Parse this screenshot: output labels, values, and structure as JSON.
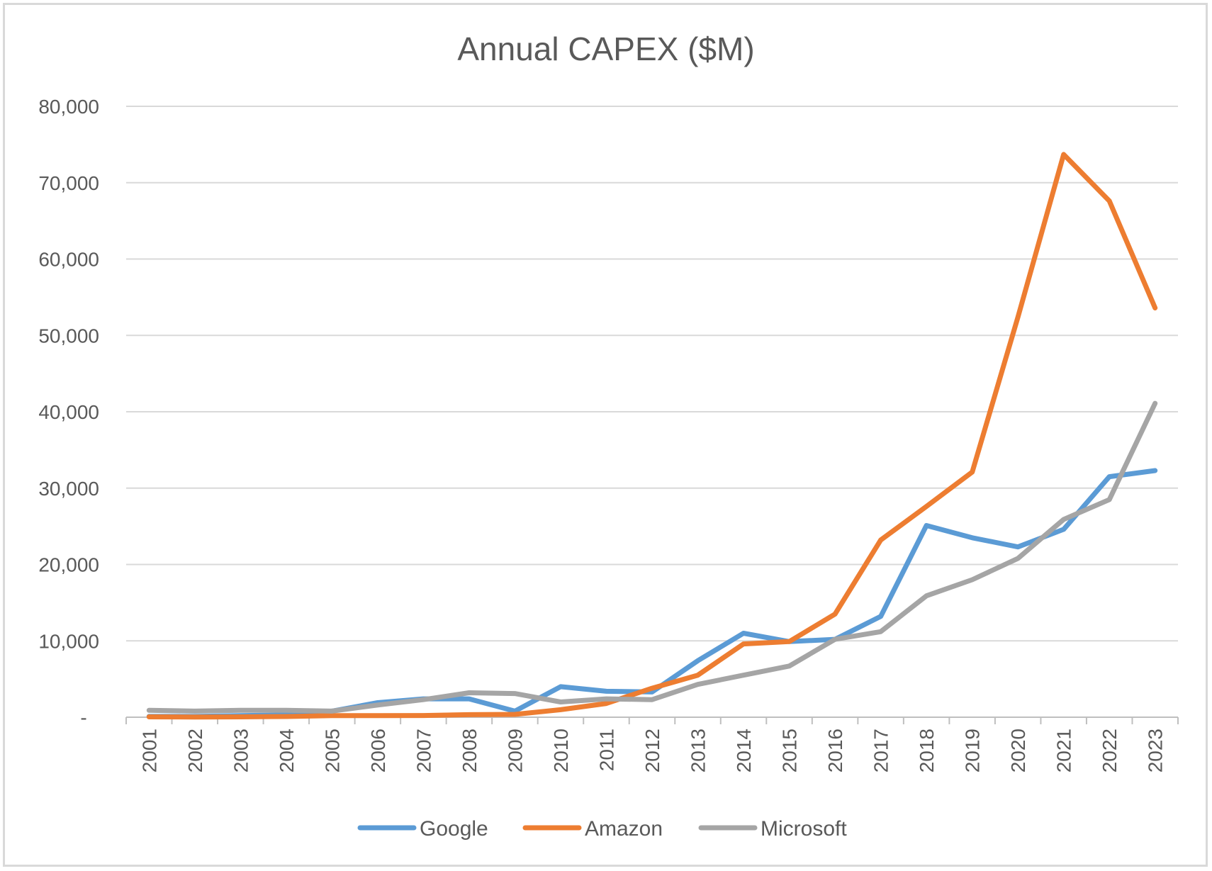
{
  "chart_data": {
    "type": "line",
    "title": "Annual CAPEX ($M)",
    "xlabel": "",
    "ylabel": "",
    "ylim": [
      0,
      80000
    ],
    "y_ticks": [
      0,
      10000,
      20000,
      30000,
      40000,
      50000,
      60000,
      70000,
      80000
    ],
    "y_tick_labels": [
      "-",
      "10,000",
      "20,000",
      "30,000",
      "40,000",
      "50,000",
      "60,000",
      "70,000",
      "80,000"
    ],
    "grid": true,
    "legend_position": "bottom",
    "categories": [
      "2001",
      "2002",
      "2003",
      "2004",
      "2005",
      "2006",
      "2007",
      "2008",
      "2009",
      "2010",
      "2011",
      "2012",
      "2013",
      "2014",
      "2015",
      "2016",
      "2017",
      "2018",
      "2019",
      "2020",
      "2021",
      "2022",
      "2023"
    ],
    "series": [
      {
        "name": "Google",
        "color": "#5b9bd5",
        "values": [
          100,
          100,
          200,
          300,
          800,
          1900,
          2400,
          2400,
          800,
          4000,
          3400,
          3300,
          7400,
          11000,
          9900,
          10200,
          13200,
          25100,
          23500,
          22300,
          24600,
          31500,
          32300
        ]
      },
      {
        "name": "Amazon",
        "color": "#ed7d31",
        "values": [
          50,
          30,
          50,
          90,
          200,
          200,
          220,
          330,
          370,
          980,
          1800,
          3800,
          5500,
          9600,
          9900,
          13500,
          23200,
          27600,
          32100,
          52400,
          73700,
          67600,
          53600
        ]
      },
      {
        "name": "Microsoft",
        "color": "#a5a5a5",
        "values": [
          900,
          800,
          900,
          900,
          800,
          1600,
          2300,
          3200,
          3100,
          2000,
          2400,
          2300,
          4300,
          5500,
          6700,
          10200,
          11200,
          15900,
          18000,
          20800,
          25900,
          28500,
          41100
        ]
      }
    ]
  }
}
